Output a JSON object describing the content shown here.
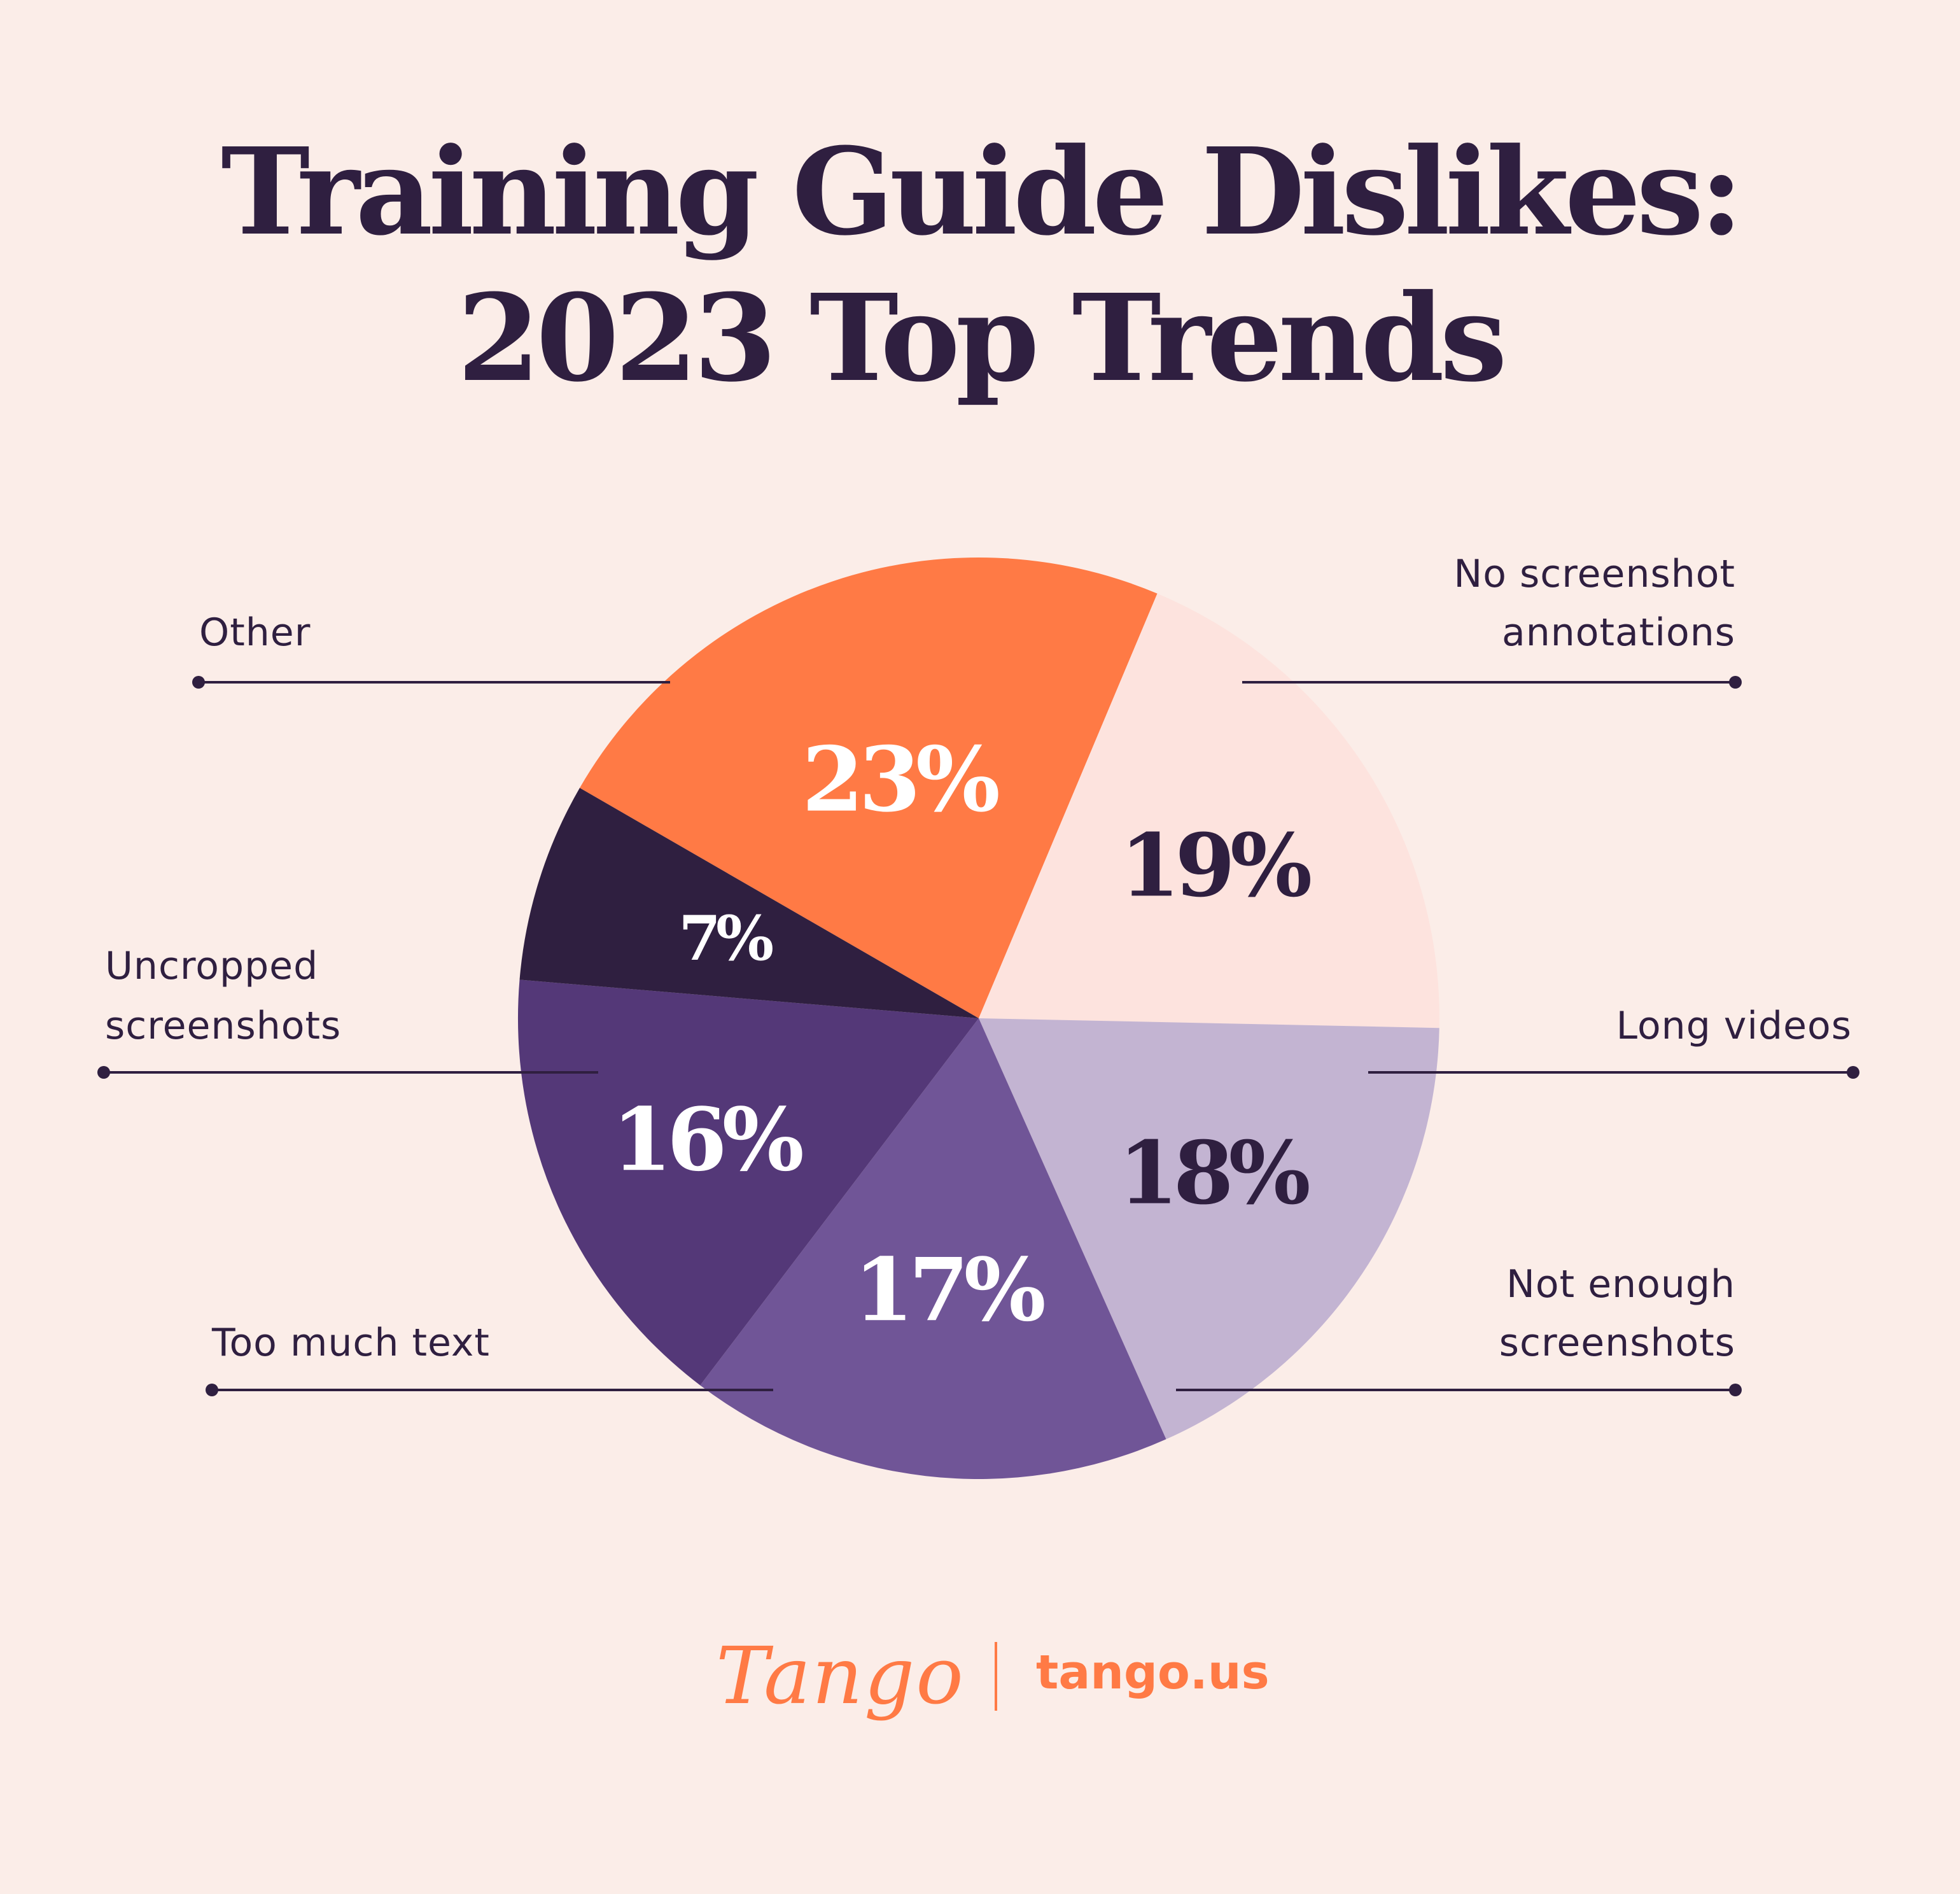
{
  "title": {
    "line1": "Training Guide Dislikes:",
    "line2": "2023 Top Trends"
  },
  "chart_data": {
    "type": "pie",
    "title": "Training Guide Dislikes: 2023 Top Trends",
    "slices": [
      {
        "label": "No screenshot annotations",
        "value": 23,
        "display": "23%",
        "color": "#ff7a45",
        "text_color": "#ffffff"
      },
      {
        "label": "Long videos",
        "value": 19,
        "display": "19%",
        "color": "#fde3de",
        "text_color": "#2f1f40"
      },
      {
        "label": "Not enough screenshots",
        "value": 18,
        "display": "18%",
        "color": "#c3b4d2",
        "text_color": "#2f1f40"
      },
      {
        "label": "Too much text",
        "value": 17,
        "display": "17%",
        "color": "#705597",
        "text_color": "#ffffff"
      },
      {
        "label": "Uncropped screenshots",
        "value": 16,
        "display": "16%",
        "color": "#543878",
        "text_color": "#ffffff"
      },
      {
        "label": "Other",
        "value": 7,
        "display": "7%",
        "color": "#2f1f40",
        "text_color": "#ffffff"
      }
    ],
    "callouts": [
      {
        "slice": 0,
        "lines": [
          "No screenshot",
          "annotations"
        ]
      },
      {
        "slice": 1,
        "lines": [
          "Long videos"
        ]
      },
      {
        "slice": 2,
        "lines": [
          "Not enough",
          "screenshots"
        ]
      },
      {
        "slice": 3,
        "lines": [
          "Too much text"
        ]
      },
      {
        "slice": 4,
        "lines": [
          "Uncropped",
          "screenshots"
        ]
      },
      {
        "slice": 5,
        "lines": [
          "Other"
        ]
      }
    ],
    "start_direction": "north-west",
    "direction": "clockwise"
  },
  "footer": {
    "logo_text": "Tango",
    "url": "tango.us"
  },
  "colors": {
    "background": "#fbede8",
    "text": "#2f1f40",
    "brand": "#ff7a45"
  }
}
